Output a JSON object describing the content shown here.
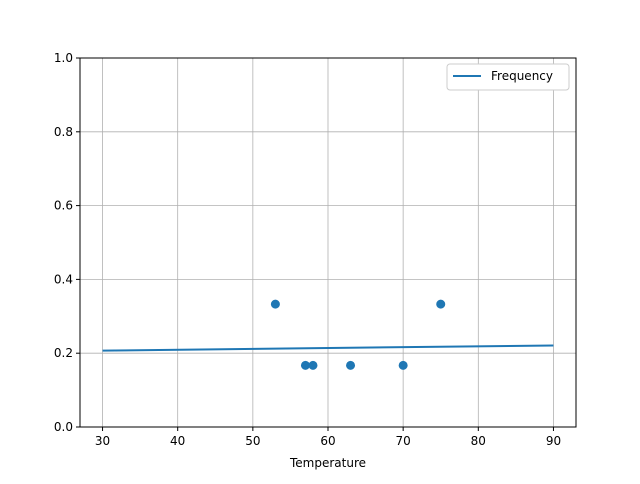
{
  "chart_data": {
    "type": "scatter",
    "title": "",
    "xlabel": "Temperature",
    "ylabel": "",
    "xlim": [
      27,
      93
    ],
    "ylim": [
      0,
      1
    ],
    "xticks": [
      30,
      40,
      50,
      60,
      70,
      80,
      90
    ],
    "yticks": [
      0.0,
      0.2,
      0.4,
      0.6,
      0.8,
      1.0
    ],
    "xtick_labels": [
      "30",
      "40",
      "50",
      "60",
      "70",
      "80",
      "90"
    ],
    "ytick_labels": [
      "0.0",
      "0.2",
      "0.4",
      "0.6",
      "0.8",
      "1.0"
    ],
    "grid": true,
    "legend_position": "top-right",
    "color": "#1f77b4",
    "series": [
      {
        "name": "Frequency",
        "type": "line",
        "x": [
          30,
          90
        ],
        "y": [
          0.207,
          0.221
        ]
      },
      {
        "type": "scatter",
        "x": [
          53,
          57,
          58,
          63,
          70,
          75
        ],
        "y": [
          0.333,
          0.167,
          0.167,
          0.167,
          0.167,
          0.333
        ]
      }
    ]
  }
}
